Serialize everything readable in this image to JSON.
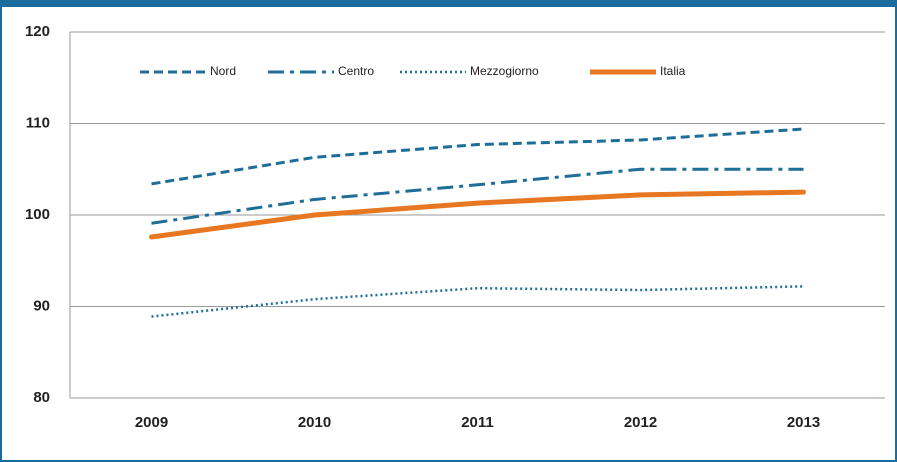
{
  "chart_data": {
    "type": "line",
    "categories": [
      "2009",
      "2010",
      "2011",
      "2012",
      "2013"
    ],
    "series": [
      {
        "name": "Nord",
        "color": "#1f6e97",
        "style": "dashed",
        "width": 3,
        "values": [
          103.4,
          106.3,
          107.7,
          108.2,
          109.4
        ]
      },
      {
        "name": "Centro",
        "color": "#1f6e97",
        "style": "dashdot",
        "width": 3,
        "values": [
          99.1,
          101.7,
          103.3,
          105.0,
          105.0
        ]
      },
      {
        "name": "Mezzogiorno",
        "color": "#1f6e97",
        "style": "dotted",
        "width": 2.5,
        "values": [
          88.9,
          90.8,
          92.0,
          91.8,
          92.2
        ]
      },
      {
        "name": "Italia",
        "color": "#e87722",
        "style": "solid",
        "width": 5,
        "values": [
          97.6,
          100.0,
          101.3,
          102.2,
          102.5
        ]
      }
    ],
    "ylim": [
      80,
      120
    ],
    "yticks": [
      80,
      90,
      100,
      110,
      120
    ],
    "grid": true
  }
}
